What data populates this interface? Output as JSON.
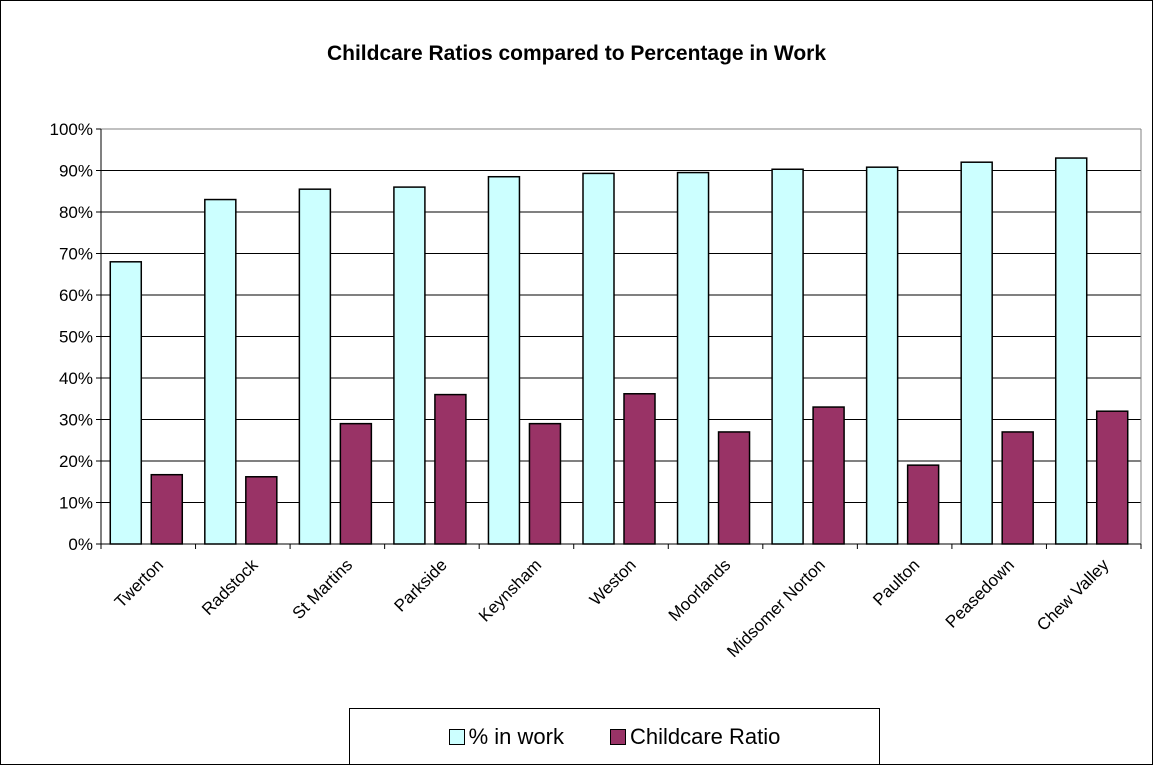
{
  "chart_data": {
    "type": "bar",
    "title": "Childcare Ratios compared to Percentage in Work",
    "categories": [
      "Twerton",
      "Radstock",
      "St Martins",
      "Parkside",
      "Keynsham",
      "Weston",
      "Moorlands",
      "Midsomer Norton",
      "Paulton",
      "Peasedown",
      "Chew Valley"
    ],
    "series": [
      {
        "name": "% in work",
        "color": "#ccffff",
        "values": [
          68,
          83,
          85.5,
          86,
          88.5,
          89.3,
          89.5,
          90.3,
          90.8,
          92,
          93
        ]
      },
      {
        "name": "Childcare Ratio",
        "color": "#993366",
        "values": [
          16.7,
          16.2,
          29,
          36,
          29,
          36.2,
          27,
          33,
          19,
          27,
          32
        ]
      }
    ],
    "ylim": [
      0,
      100
    ],
    "yticks": [
      "0%",
      "10%",
      "20%",
      "30%",
      "40%",
      "50%",
      "60%",
      "70%",
      "80%",
      "90%",
      "100%"
    ],
    "xlabel": "",
    "ylabel": "",
    "grid": true,
    "legend_position": "bottom"
  }
}
